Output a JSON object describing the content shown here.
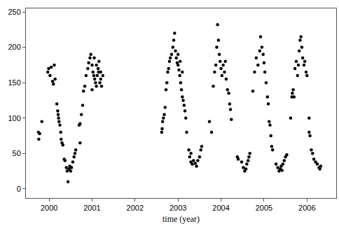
{
  "chart_data": {
    "type": "scatter",
    "x_label": "time (year)",
    "color": "#000000",
    "marker": "circle",
    "grid": false,
    "xlim": [
      1999.46,
      2006.68
    ],
    "xticks": [
      2000,
      2001,
      2002,
      2003,
      2004,
      2005,
      2006
    ],
    "ylim": [
      -13,
      255
    ],
    "yticks": [
      0,
      50,
      100,
      150,
      200,
      250
    ],
    "x": [
      1999.75,
      1999.76,
      1999.78,
      1999.83,
      1999.97,
      1999.99,
      2000.02,
      2000.05,
      2000.08,
      2000.1,
      2000.12,
      2000.14,
      2000.18,
      2000.2,
      2000.21,
      2000.22,
      2000.23,
      2000.25,
      2000.27,
      2000.28,
      2000.3,
      2000.32,
      2000.35,
      2000.37,
      2000.4,
      2000.42,
      2000.44,
      2000.46,
      2000.48,
      2000.5,
      2000.52,
      2000.55,
      2000.58,
      2000.6,
      2000.62,
      2000.7,
      2000.72,
      2000.75,
      2000.78,
      2000.8,
      2000.83,
      2000.86,
      2000.9,
      2000.92,
      2000.95,
      2000.97,
      2000.72,
      2001.0,
      2001.02,
      2001.04,
      2001.06,
      2001.08,
      2001.1,
      2001.12,
      2001.14,
      2001.16,
      2001.18,
      2001.2,
      2001.22,
      2001.0,
      2001.05,
      2001.1,
      2001.15,
      2001.2,
      2001.25,
      2002.62,
      2002.63,
      2002.64,
      2002.66,
      2002.68,
      2002.7,
      2002.72,
      2002.74,
      2002.76,
      2002.78,
      2002.8,
      2002.82,
      2002.85,
      2002.88,
      2002.9,
      2002.92,
      2002.94,
      2002.96,
      2002.98,
      2003.0,
      2003.02,
      2003.04,
      2003.06,
      2003.08,
      2003.1,
      2003.12,
      2003.14,
      2003.16,
      2003.18,
      2003.2,
      2003.0,
      2003.05,
      2003.1,
      2003.25,
      2003.27,
      2003.3,
      2003.33,
      2003.36,
      2003.4,
      2003.43,
      2003.46,
      2003.5,
      2003.53,
      2003.55,
      2003.3,
      2003.73,
      2003.78,
      2003.82,
      2003.85,
      2003.88,
      2003.9,
      2003.92,
      2003.94,
      2003.96,
      2003.98,
      2004.0,
      2004.02,
      2004.05,
      2004.08,
      2004.1,
      2004.12,
      2004.15,
      2004.18,
      2004.2,
      2004.22,
      2004.24,
      2004.38,
      2004.4,
      2004.48,
      2004.52,
      2004.55,
      2004.58,
      2004.6,
      2004.63,
      2004.65,
      2004.67,
      2004.74,
      2004.78,
      2004.82,
      2004.86,
      2004.9,
      2004.92,
      2004.95,
      2004.98,
      2005.0,
      2005.02,
      2005.05,
      2005.08,
      2005.1,
      2005.12,
      2005.14,
      2005.16,
      2005.18,
      2005.2,
      2005.28,
      2005.32,
      2005.35,
      2005.38,
      2005.4,
      2005.44,
      2005.47,
      2005.5,
      2005.53,
      2005.42,
      2005.62,
      2005.65,
      2005.66,
      2005.68,
      2005.7,
      2005.72,
      2005.75,
      2005.78,
      2005.8,
      2005.82,
      2005.84,
      2005.86,
      2005.88,
      2005.9,
      2005.93,
      2005.95,
      2005.98,
      2006.0,
      2006.05,
      2006.05,
      2006.07,
      2006.1,
      2006.13,
      2006.16,
      2006.2,
      2006.24,
      2006.28,
      2006.3,
      2006.32
    ],
    "values": [
      80,
      70,
      78,
      95,
      165,
      170,
      160,
      172,
      152,
      148,
      175,
      155,
      120,
      110,
      105,
      100,
      95,
      90,
      80,
      70,
      65,
      62,
      42,
      40,
      30,
      25,
      10,
      28,
      32,
      25,
      30,
      38,
      45,
      50,
      55,
      90,
      92,
      105,
      118,
      138,
      145,
      160,
      170,
      178,
      185,
      190,
      65,
      175,
      165,
      160,
      155,
      150,
      145,
      160,
      170,
      180,
      150,
      155,
      145,
      140,
      185,
      175,
      165,
      165,
      160,
      80,
      85,
      95,
      100,
      105,
      115,
      140,
      150,
      165,
      170,
      180,
      185,
      190,
      200,
      210,
      220,
      195,
      185,
      178,
      175,
      168,
      160,
      150,
      140,
      130,
      125,
      118,
      110,
      100,
      80,
      190,
      180,
      165,
      55,
      45,
      38,
      35,
      40,
      36,
      32,
      40,
      45,
      55,
      60,
      50,
      95,
      80,
      145,
      165,
      175,
      200,
      232,
      210,
      190,
      180,
      170,
      160,
      175,
      165,
      180,
      155,
      140,
      135,
      120,
      112,
      98,
      45,
      42,
      38,
      30,
      25,
      28,
      35,
      40,
      45,
      50,
      138,
      165,
      185,
      175,
      195,
      215,
      200,
      190,
      178,
      165,
      150,
      130,
      120,
      95,
      90,
      75,
      60,
      55,
      35,
      30,
      25,
      28,
      32,
      35,
      40,
      45,
      48,
      26,
      100,
      130,
      135,
      140,
      130,
      170,
      180,
      160,
      175,
      195,
      210,
      215,
      200,
      185,
      175,
      180,
      165,
      160,
      100,
      80,
      75,
      55,
      50,
      42,
      38,
      35,
      30,
      28,
      32
    ]
  }
}
